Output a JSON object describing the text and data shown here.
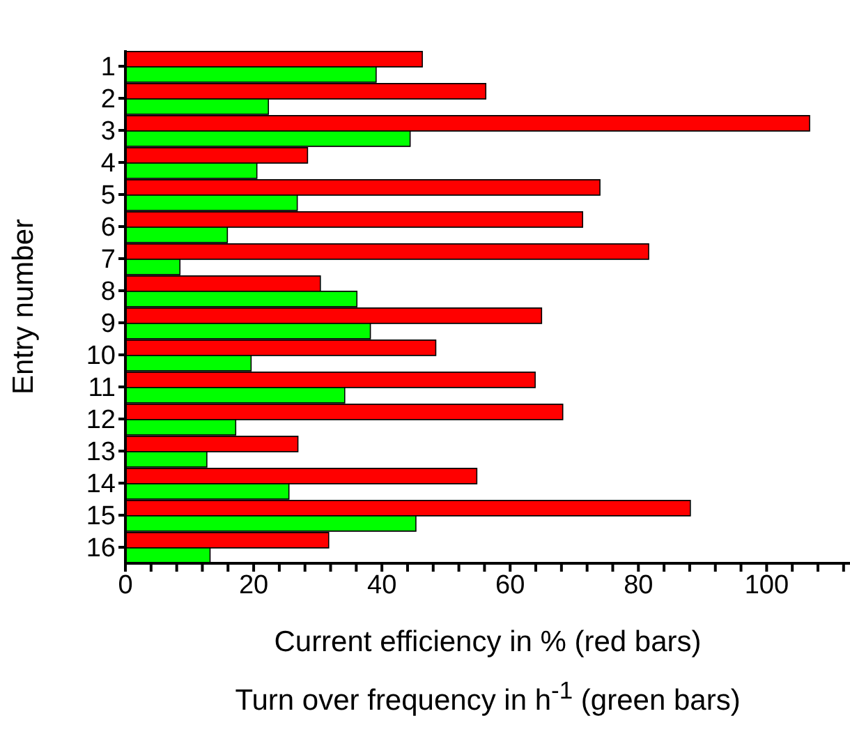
{
  "chart_data": {
    "type": "bar",
    "orientation": "horizontal",
    "ylabel": "Entry number",
    "xlabel": "Current efficiency in % (red bars)\nTurn over frequency in h$^{-1}$ (green bars)",
    "categories": [
      "1",
      "2",
      "3",
      "4",
      "5",
      "6",
      "7",
      "8",
      "9",
      "10",
      "11",
      "12",
      "13",
      "14",
      "15",
      "16"
    ],
    "series": [
      {
        "color": "#ff0000",
        "values": [
          46.3,
          56.2,
          106.7,
          28.4,
          74.0,
          71.3,
          81.6,
          30.4,
          64.9,
          48.4,
          63.9,
          68.2,
          26.9,
          54.8,
          88.1,
          31.7
        ]
      },
      {
        "color": "#00ff00",
        "values": [
          39.1,
          22.3,
          44.4,
          20.5,
          26.8,
          15.9,
          8.5,
          36.1,
          38.2,
          19.6,
          34.2,
          17.2,
          12.7,
          25.5,
          45.3,
          13.2
        ]
      }
    ],
    "xlim": [
      0,
      113
    ],
    "xticks": [
      0,
      {
        "value": 4,
        "label": null
      },
      {
        "value": 8,
        "label": null
      },
      {
        "value": 12,
        "label": null
      },
      {
        "value": 16,
        "label": null
      },
      20,
      {
        "value": 24,
        "label": null
      },
      {
        "value": 28,
        "label": null
      },
      {
        "value": 32,
        "label": null
      },
      {
        "value": 36,
        "label": null
      },
      40,
      {
        "value": 44,
        "label": null
      },
      {
        "value": 48,
        "label": null
      },
      {
        "value": 52,
        "label": null
      },
      {
        "value": 56,
        "label": null
      },
      60,
      {
        "value": 64,
        "label": null
      },
      {
        "value": 68,
        "label": null
      },
      {
        "value": 72,
        "label": null
      },
      {
        "value": 76,
        "label": null
      },
      80,
      {
        "value": 84,
        "label": null
      },
      {
        "value": 88,
        "label": null
      },
      {
        "value": 92,
        "label": null
      },
      {
        "value": 96,
        "label": null
      },
      100,
      {
        "value": 104,
        "label": null
      },
      {
        "value": 108,
        "label": null
      },
      {
        "value": 112,
        "label": null
      }
    ],
    "grid": false,
    "legend": false
  }
}
